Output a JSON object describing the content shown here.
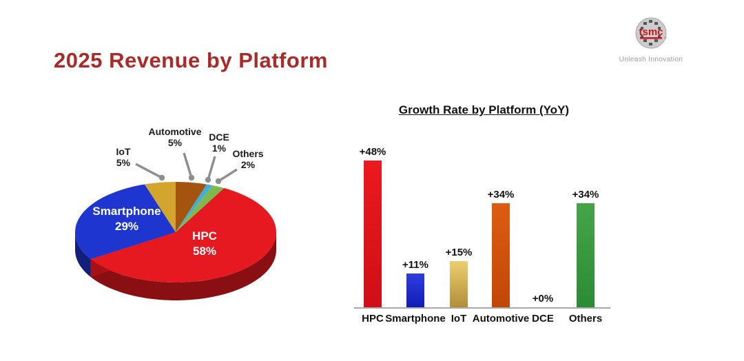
{
  "page": {
    "title": "2025 Revenue by Platform",
    "title_color": "#ab2a28",
    "background": "#ffffff"
  },
  "logo": {
    "brand": "tsmc",
    "tagline": "Unleash Innovation",
    "brand_color": "#c4161c",
    "wafer_color": "#cccccc"
  },
  "chart_data": [
    {
      "type": "pie",
      "style": "3d",
      "title": "2025 Revenue by Platform",
      "unit": "%",
      "leader_color": "#8f8f8f",
      "slices": [
        {
          "label": "HPC",
          "value": 58,
          "display": "58%",
          "color": "#e5191f",
          "label_placement": "inside"
        },
        {
          "label": "Smartphone",
          "value": 29,
          "display": "29%",
          "color": "#1e36cf",
          "label_placement": "inside"
        },
        {
          "label": "IoT",
          "value": 5,
          "display": "5%",
          "color": "#d3a52c",
          "label_placement": "outside"
        },
        {
          "label": "Automotive",
          "value": 5,
          "display": "5%",
          "color": "#a4540f",
          "label_placement": "outside"
        },
        {
          "label": "DCE",
          "value": 1,
          "display": "1%",
          "color": "#41aede",
          "label_placement": "outside"
        },
        {
          "label": "Others",
          "value": 2,
          "display": "2%",
          "color": "#7fb94e",
          "label_placement": "outside"
        }
      ]
    },
    {
      "type": "bar",
      "title": "Growth Rate by Platform (YoY)",
      "categories": [
        "HPC",
        "Smartphone",
        "IoT",
        "Automotive",
        "DCE",
        "Others"
      ],
      "values": [
        48,
        11,
        15,
        34,
        0,
        34
      ],
      "labels": [
        "+48%",
        "+11%",
        "+15%",
        "+34%",
        "+0%",
        "+34%"
      ],
      "colors": [
        {
          "from": "#ea1a20",
          "to": "#cf0f16"
        },
        {
          "from": "#2e3ede",
          "to": "#101cb5"
        },
        {
          "from": "#eccf70",
          "to": "#b28d38"
        },
        {
          "from": "#dd5c10",
          "to": "#c14708"
        },
        null,
        {
          "from": "#46a547",
          "to": "#2b8c34"
        }
      ],
      "ylim": [
        0,
        52
      ],
      "grid": false,
      "axis_color": "#a8a8a8",
      "legend": "none"
    }
  ]
}
